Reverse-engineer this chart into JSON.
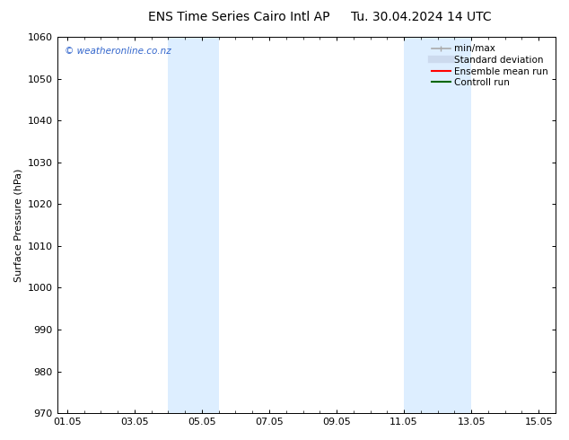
{
  "title_left": "ENS Time Series Cairo Intl AP",
  "title_right": "Tu. 30.04.2024 14 UTC",
  "ylabel": "Surface Pressure (hPa)",
  "ylim": [
    970,
    1060
  ],
  "yticks": [
    970,
    980,
    990,
    1000,
    1010,
    1020,
    1030,
    1040,
    1050,
    1060
  ],
  "xtick_labels": [
    "01.05",
    "03.05",
    "05.05",
    "07.05",
    "09.05",
    "11.05",
    "13.05",
    "15.05"
  ],
  "xtick_days": [
    1,
    3,
    5,
    7,
    9,
    11,
    13,
    15
  ],
  "x_start_day": 1,
  "x_end_day": 15,
  "shaded_regions": [
    {
      "x0_day": 4.0,
      "x1_day": 5.5,
      "color": "#ddeeff"
    },
    {
      "x0_day": 11.0,
      "x1_day": 13.0,
      "color": "#ddeeff"
    }
  ],
  "watermark": "© weatheronline.co.nz",
  "watermark_color": "#3366cc",
  "background_color": "#ffffff",
  "legend_items": [
    {
      "label": "min/max",
      "color": "#aaaaaa",
      "lw": 1.2
    },
    {
      "label": "Standard deviation",
      "color": "#ccdaee",
      "lw": 6
    },
    {
      "label": "Ensemble mean run",
      "color": "#ff0000",
      "lw": 1.5
    },
    {
      "label": "Controll run",
      "color": "#006600",
      "lw": 1.5
    }
  ],
  "title_fontsize": 10,
  "tick_fontsize": 8,
  "ylabel_fontsize": 8,
  "watermark_fontsize": 7.5,
  "legend_fontsize": 7.5
}
